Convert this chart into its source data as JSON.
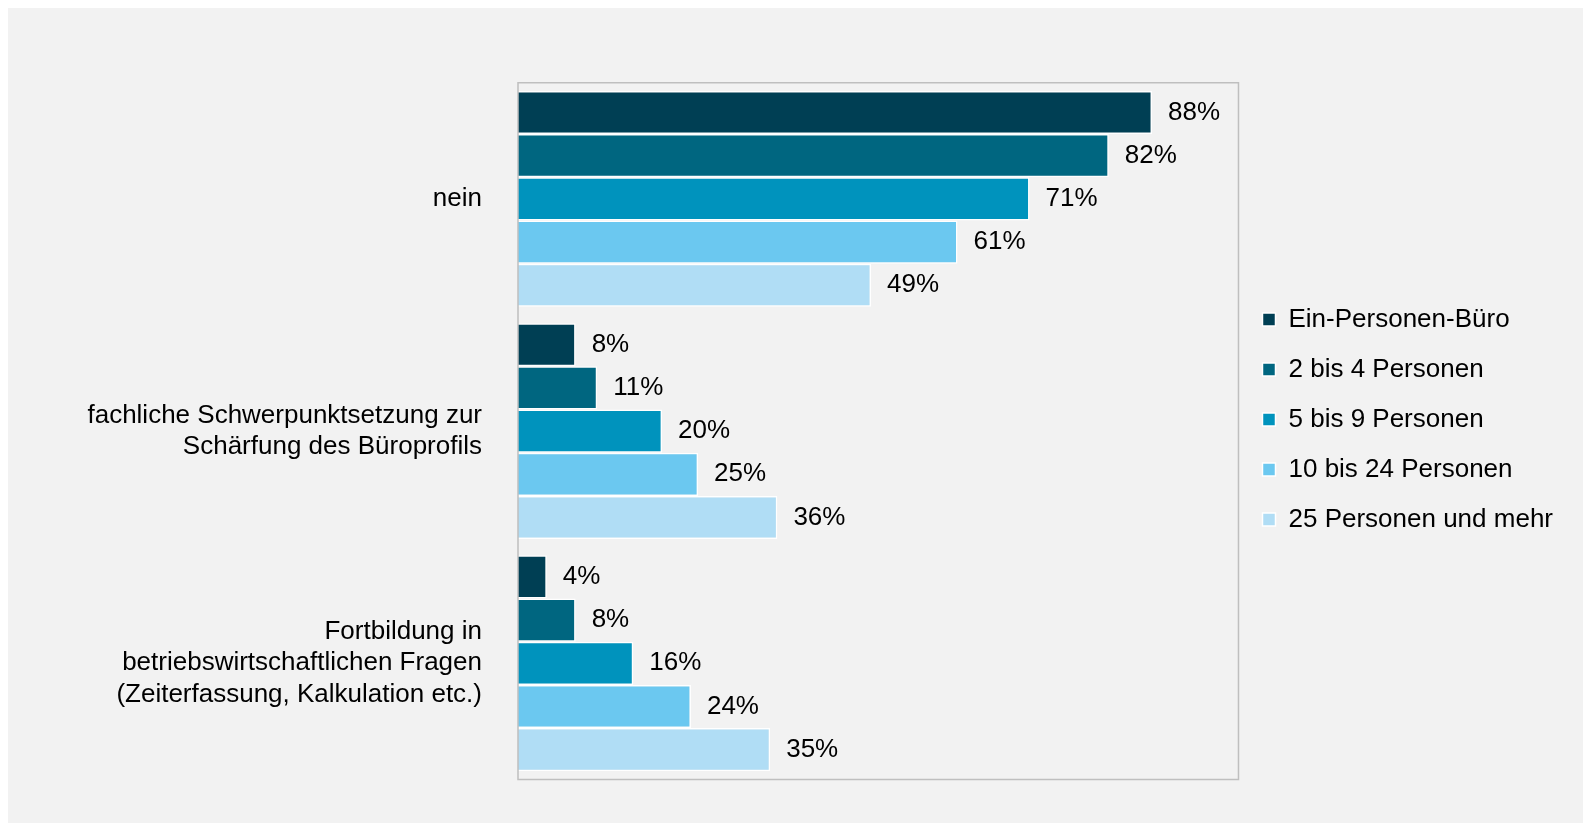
{
  "chart_data": {
    "type": "bar",
    "orientation": "horizontal",
    "categories": [
      "nein",
      "fachliche Schwerpunktsetzung zur Schärfung des Büroprofils",
      "Fortbildung in betriebswirtschaftlichen Fragen (Zeiterfassung, Kalkulation etc.)"
    ],
    "series": [
      {
        "name": "Ein-Personen-Büro",
        "color": "#003f54",
        "values": [
          88,
          8,
          4
        ],
        "value_labels": [
          "88%",
          "8%",
          "4%"
        ]
      },
      {
        "name": "2 bis 4 Personen",
        "color": "#006680",
        "values": [
          82,
          11,
          8
        ],
        "value_labels": [
          "82%",
          "11%",
          "8%"
        ]
      },
      {
        "name": "5 bis 9 Personen",
        "color": "#0093bd",
        "values": [
          71,
          20,
          16
        ],
        "value_labels": [
          "71%",
          "20%",
          "16%"
        ]
      },
      {
        "name": "10 bis 24 Personen",
        "color": "#6bc8f0",
        "values": [
          61,
          25,
          24
        ],
        "value_labels": [
          "61%",
          "25%",
          "24%"
        ]
      },
      {
        "name": "25 Personen und mehr",
        "color": "#b0ddf5",
        "values": [
          49,
          36,
          35
        ],
        "value_labels": [
          "49%",
          "36%",
          "35%"
        ]
      }
    ],
    "xlim": [
      0,
      100
    ],
    "tick_labels": "y",
    "grid": false,
    "legend": "right"
  }
}
